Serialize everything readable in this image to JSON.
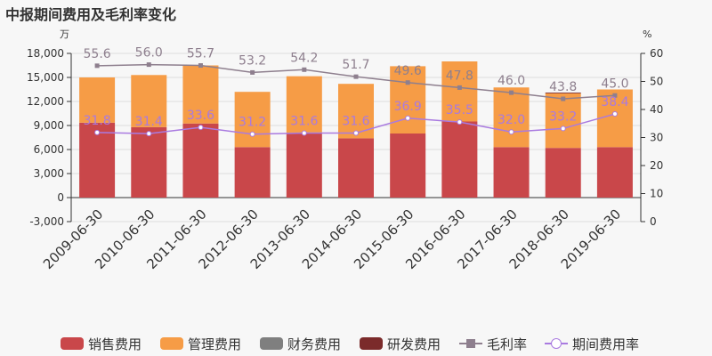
{
  "title": "中报期间费用及毛利率变化",
  "colors": {
    "sales": "#c9474a",
    "admin": "#f69c46",
    "finance": "#7f7f7f",
    "rnd": "#7b2b2b",
    "gross_margin": "#8e7f8e",
    "expense_rate": "#a97ae0"
  },
  "legend": {
    "sales": "销售费用",
    "admin": "管理费用",
    "finance": "财务费用",
    "rnd": "研发费用",
    "gross_margin": "毛利率",
    "expense_rate": "期间费用率"
  },
  "chart_data": {
    "type": "bar",
    "stacked": true,
    "categories": [
      "2009-06-30",
      "2010-06-30",
      "2011-06-30",
      "2012-06-30",
      "2013-06-30",
      "2014-06-30",
      "2015-06-30",
      "2016-06-30",
      "2017-06-30",
      "2018-06-30",
      "2019-06-30"
    ],
    "series": [
      {
        "name": "销售费用",
        "values": [
          9350,
          8800,
          9250,
          6300,
          8000,
          7400,
          8000,
          9500,
          6300,
          6200,
          6300
        ]
      },
      {
        "name": "管理费用",
        "values": [
          5650,
          6500,
          7250,
          6900,
          7150,
          6800,
          8400,
          7500,
          7450,
          6800,
          7200
        ]
      },
      {
        "name": "财务费用",
        "values": [
          0,
          0,
          0,
          0,
          0,
          0,
          0,
          0,
          0,
          0,
          0
        ]
      },
      {
        "name": "研发费用",
        "values": [
          0,
          0,
          0,
          0,
          0,
          0,
          0,
          0,
          0,
          100,
          0
        ]
      }
    ],
    "lines": [
      {
        "name": "毛利率",
        "values": [
          55.6,
          56.0,
          55.7,
          53.2,
          54.2,
          51.7,
          49.6,
          47.8,
          46.0,
          43.8,
          45.0
        ]
      },
      {
        "name": "期间费用率",
        "values": [
          31.8,
          31.4,
          33.6,
          31.2,
          31.6,
          31.6,
          36.9,
          35.5,
          32.0,
          33.2,
          38.4
        ]
      }
    ],
    "y_left": {
      "unit": "万",
      "ticks": [
        -3000,
        0,
        3000,
        6000,
        9000,
        12000,
        15000,
        18000
      ],
      "tick_labels": [
        "-3,000",
        "0",
        "3,000",
        "6,000",
        "9,000",
        "12,000",
        "15,000",
        "18,000"
      ],
      "ylim": [
        -3000,
        18000
      ]
    },
    "y_right": {
      "unit": "%",
      "ticks": [
        0,
        10,
        20,
        30,
        40,
        50,
        60
      ],
      "tick_labels": [
        "0",
        "10",
        "20",
        "30",
        "40",
        "50",
        "60"
      ],
      "ylim": [
        0,
        60
      ]
    },
    "grid": true,
    "legend_position": "bottom"
  }
}
